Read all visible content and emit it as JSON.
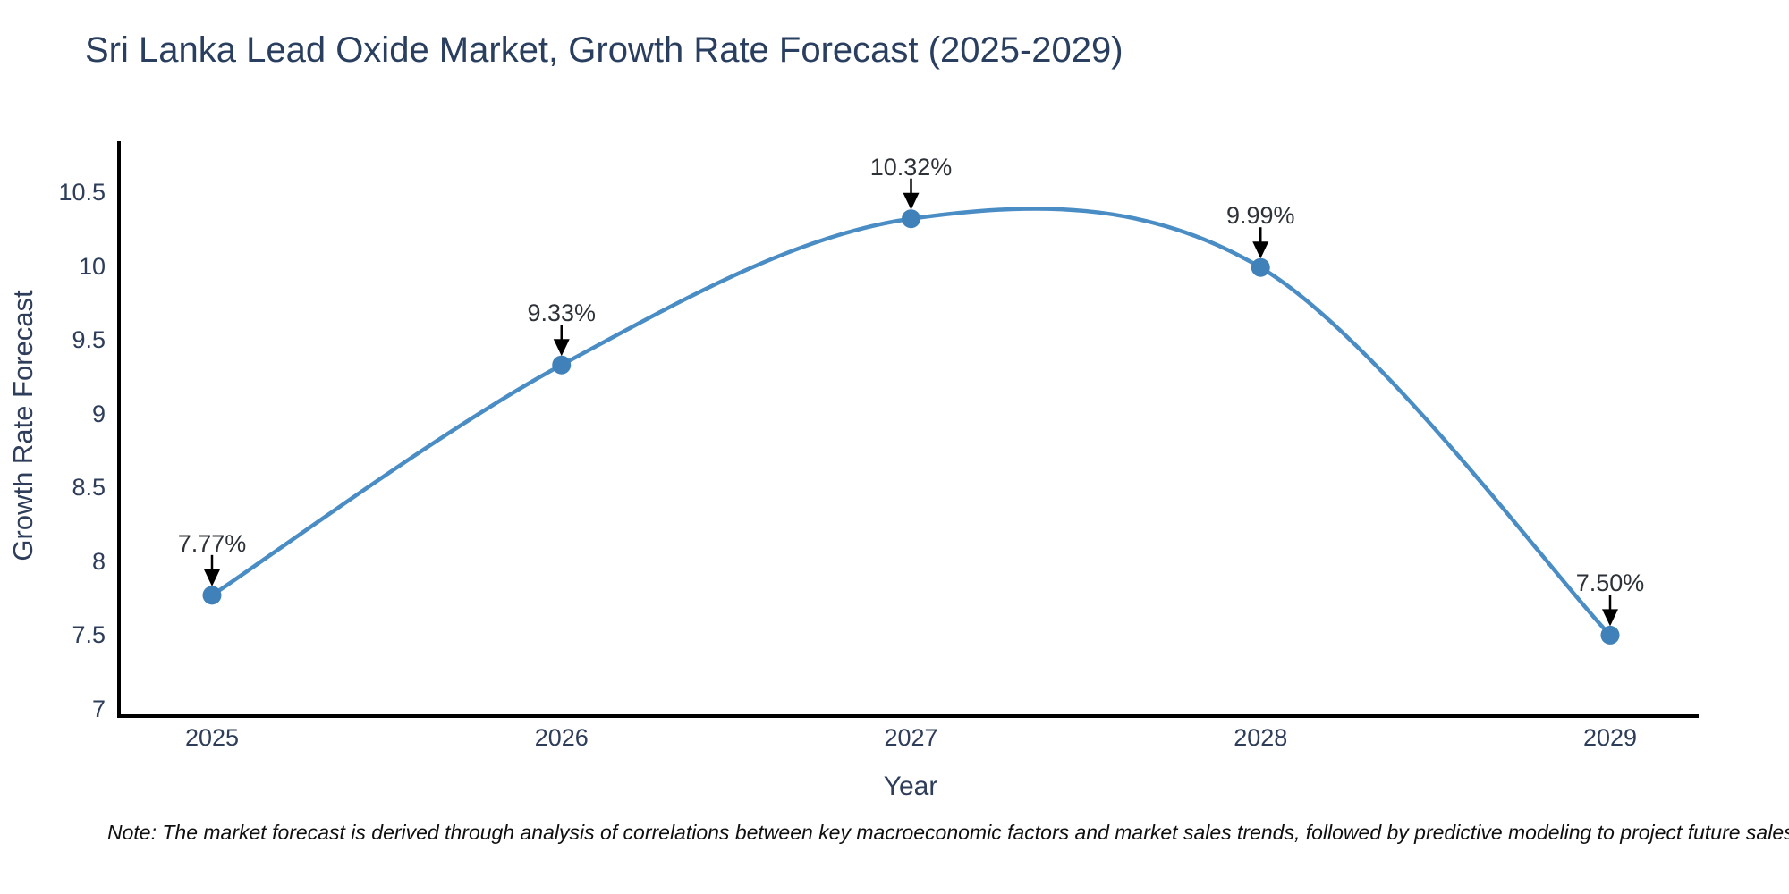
{
  "chart_data": {
    "type": "line",
    "title": "Sri Lanka Lead Oxide Market, Growth Rate Forecast (2025-2029)",
    "xlabel": "Year",
    "ylabel": "Growth Rate Forecast",
    "categories": [
      "2025",
      "2026",
      "2027",
      "2028",
      "2029"
    ],
    "series": [
      {
        "name": "Growth Rate Forecast",
        "values": [
          7.77,
          9.33,
          10.32,
          9.99,
          7.5
        ]
      }
    ],
    "point_labels": [
      "7.77%",
      "9.33%",
      "10.32%",
      "9.99%",
      "7.50%"
    ],
    "yticks": [
      10.5,
      10,
      9.5,
      9,
      8.5,
      8,
      7.5,
      7
    ],
    "ylim": [
      7,
      10.85
    ],
    "grid": false,
    "legend_position": "none",
    "line_shape": "spline",
    "marker": "circle",
    "annotation_arrows": true,
    "colors": {
      "line": "#4a8cc4",
      "marker": "#3f81b8",
      "arrow": "#000000",
      "axis": "#000000",
      "title_text": "#2a3f5f",
      "tick_text": "#2e3d59"
    },
    "note": "Note: The market forecast is derived through analysis of correlations between key macroeconomic factors and market sales trends, followed by predictive modeling to project future sales performance."
  }
}
